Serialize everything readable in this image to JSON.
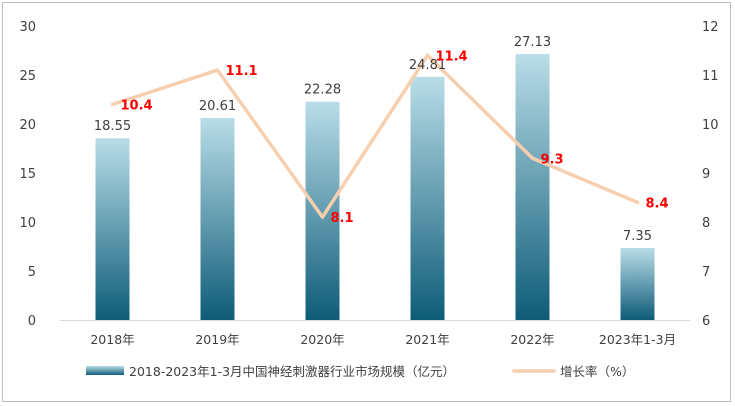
{
  "chart_data": {
    "type": "bar+line",
    "categories": [
      "2018年",
      "2019年",
      "2020年",
      "2021年",
      "2022年",
      "2023年1-3月"
    ],
    "series": [
      {
        "name": "2018-2023年1-3月中国神经刺激器行业市场规模（亿元）",
        "type": "bar",
        "axis": "left",
        "values": [
          18.55,
          20.61,
          22.28,
          24.81,
          27.13,
          7.35
        ],
        "labels": [
          "18.55",
          "20.61",
          "22.28",
          "24.81",
          "27.13",
          "7.35"
        ]
      },
      {
        "name": "增长率（%）",
        "type": "line",
        "axis": "right",
        "values": [
          10.4,
          11.1,
          8.1,
          11.4,
          9.3,
          8.4
        ],
        "labels": [
          "10.4",
          "11.1",
          "8.1",
          "11.4",
          "9.3",
          "8.4"
        ]
      }
    ],
    "y_left": {
      "min": 0,
      "max": 30,
      "ticks": [
        "0",
        "5",
        "10",
        "15",
        "20",
        "25",
        "30"
      ]
    },
    "y_right": {
      "min": 6,
      "max": 12,
      "ticks": [
        "6",
        "7",
        "8",
        "9",
        "10",
        "11",
        "12"
      ]
    },
    "legend_position": "bottom",
    "grid": false,
    "colors": {
      "bar_top": "#b9dde8",
      "bar_bottom": "#0e5c78",
      "line": "#f7cfae",
      "growth_label": "#ff0000",
      "text": "#404040"
    }
  }
}
